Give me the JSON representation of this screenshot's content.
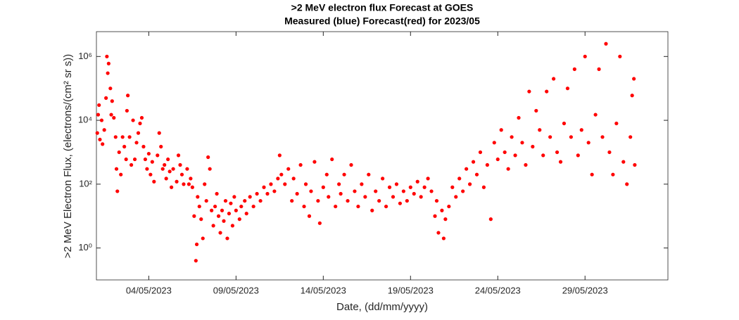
{
  "chart_data": {
    "type": "scatter",
    "title": ">2 MeV electron flux Forecast at GOES",
    "subtitle": "Measured (blue) Forecast(red) for 2023/05",
    "x_label": "Date, (dd/mm/yyyy)",
    "y_label": ">2 MeV Electron Flux, (electrons/(cm² sr s))",
    "log_y": true,
    "xlim": [
      1,
      33.75
    ],
    "ylim": [
      0.1,
      6000000
    ],
    "xticks": [
      {
        "value": 4,
        "label": "04/05/2023"
      },
      {
        "value": 9,
        "label": "09/05/2023"
      },
      {
        "value": 14,
        "label": "14/05/2023"
      },
      {
        "value": 19,
        "label": "19/05/2023"
      },
      {
        "value": 24,
        "label": "24/05/2023"
      },
      {
        "value": 29,
        "label": "29/05/2023"
      }
    ],
    "yticks": [
      {
        "value": 1,
        "label": "10⁰"
      },
      {
        "value": 100,
        "label": "10²"
      },
      {
        "value": 10000,
        "label": "10⁴"
      },
      {
        "value": 1000000,
        "label": "10⁶"
      }
    ],
    "series": [
      {
        "color": "#ff0000",
        "x": [
          1.05,
          1.1,
          1.15,
          1.2,
          1.3,
          1.35,
          1.45,
          1.55,
          1.6,
          1.65,
          1.7,
          1.8,
          1.85,
          1.9,
          2.0,
          2.1,
          2.15,
          2.2,
          2.3,
          2.4,
          2.5,
          2.6,
          2.7,
          2.75,
          2.8,
          2.9,
          3.0,
          3.1,
          3.2,
          3.3,
          3.4,
          3.5,
          3.6,
          3.7,
          3.8,
          3.9,
          4.0,
          4.1,
          4.2,
          4.3,
          4.5,
          4.6,
          4.7,
          4.8,
          4.9,
          5.0,
          5.1,
          5.2,
          5.3,
          5.4,
          5.6,
          5.7,
          5.8,
          5.9,
          6.0,
          6.2,
          6.3,
          6.4,
          6.5,
          6.6,
          6.7,
          6.75,
          6.8,
          6.9,
          7.0,
          7.1,
          7.2,
          7.3,
          7.4,
          7.5,
          7.6,
          7.7,
          7.8,
          7.9,
          8.0,
          8.1,
          8.2,
          8.3,
          8.4,
          8.5,
          8.6,
          8.7,
          8.8,
          8.9,
          9.0,
          9.2,
          9.3,
          9.5,
          9.6,
          9.8,
          10.0,
          10.2,
          10.4,
          10.6,
          10.8,
          11.0,
          11.2,
          11.4,
          11.5,
          11.6,
          11.8,
          12.0,
          12.2,
          12.3,
          12.5,
          12.7,
          12.9,
          13.0,
          13.2,
          13.3,
          13.5,
          13.7,
          13.8,
          14.0,
          14.2,
          14.3,
          14.5,
          14.7,
          14.9,
          15.0,
          15.2,
          15.4,
          15.6,
          15.8,
          16.0,
          16.2,
          16.4,
          16.6,
          16.8,
          17.0,
          17.2,
          17.4,
          17.6,
          17.8,
          18.0,
          18.2,
          18.4,
          18.6,
          18.8,
          19.0,
          19.2,
          19.4,
          19.6,
          19.8,
          20.0,
          20.2,
          20.4,
          20.5,
          20.6,
          20.8,
          20.9,
          21.0,
          21.2,
          21.4,
          21.6,
          21.8,
          22.0,
          22.2,
          22.4,
          22.6,
          22.8,
          23.0,
          23.2,
          23.4,
          23.6,
          23.8,
          24.0,
          24.2,
          24.4,
          24.6,
          24.8,
          25.0,
          25.2,
          25.4,
          25.6,
          25.8,
          26.0,
          26.2,
          26.4,
          26.6,
          26.8,
          27.0,
          27.2,
          27.4,
          27.6,
          27.8,
          28.0,
          28.2,
          28.4,
          28.6,
          28.8,
          29.0,
          29.2,
          29.4,
          29.6,
          29.8,
          30.0,
          30.2,
          30.4,
          30.6,
          30.8,
          31.0,
          31.2,
          31.4,
          31.6,
          31.8,
          31.7,
          31.85
        ],
        "values": [
          4000,
          15000,
          30000,
          2500,
          10000,
          1800,
          5000,
          50000,
          1000000,
          300000,
          600000,
          100000,
          15000,
          40000,
          12000,
          3000,
          300,
          60,
          1000,
          200,
          3000,
          1500,
          600,
          20000,
          60000,
          3000,
          400,
          10000,
          600,
          2000,
          4000,
          8000,
          12000,
          1500,
          600,
          300,
          900,
          200,
          500,
          120,
          800,
          4000,
          1500,
          300,
          400,
          150,
          600,
          250,
          80,
          300,
          120,
          800,
          400,
          200,
          100,
          300,
          100,
          150,
          80,
          10,
          0.4,
          1.3,
          40,
          20,
          8,
          2,
          100,
          30,
          700,
          300,
          15,
          5,
          20,
          50,
          10,
          3,
          15,
          7,
          30,
          2,
          12,
          25,
          5,
          40,
          15,
          8,
          20,
          30,
          12,
          40,
          20,
          50,
          30,
          80,
          50,
          100,
          60,
          150,
          800,
          200,
          100,
          300,
          30,
          150,
          50,
          400,
          20,
          100,
          10,
          60,
          500,
          30,
          6,
          80,
          200,
          40,
          600,
          20,
          100,
          50,
          200,
          30,
          400,
          60,
          20,
          100,
          40,
          200,
          15,
          60,
          30,
          150,
          20,
          80,
          40,
          100,
          25,
          60,
          30,
          80,
          50,
          120,
          40,
          80,
          150,
          60,
          10,
          30,
          3,
          15,
          2,
          8,
          20,
          80,
          40,
          150,
          60,
          300,
          100,
          500,
          200,
          1000,
          80,
          400,
          8,
          2000,
          600,
          5000,
          1000,
          300,
          3000,
          800,
          12000,
          2000,
          400,
          80000,
          1500,
          20000,
          5000,
          800,
          80000,
          3000,
          200000,
          1000,
          500,
          8000,
          100000,
          3000,
          400000,
          800,
          5000,
          1000000,
          2000,
          200,
          15000,
          400000,
          3000,
          2500000,
          1000,
          200,
          8000,
          1000000,
          500,
          100,
          3000,
          200000,
          60000,
          400
        ]
      }
    ]
  }
}
